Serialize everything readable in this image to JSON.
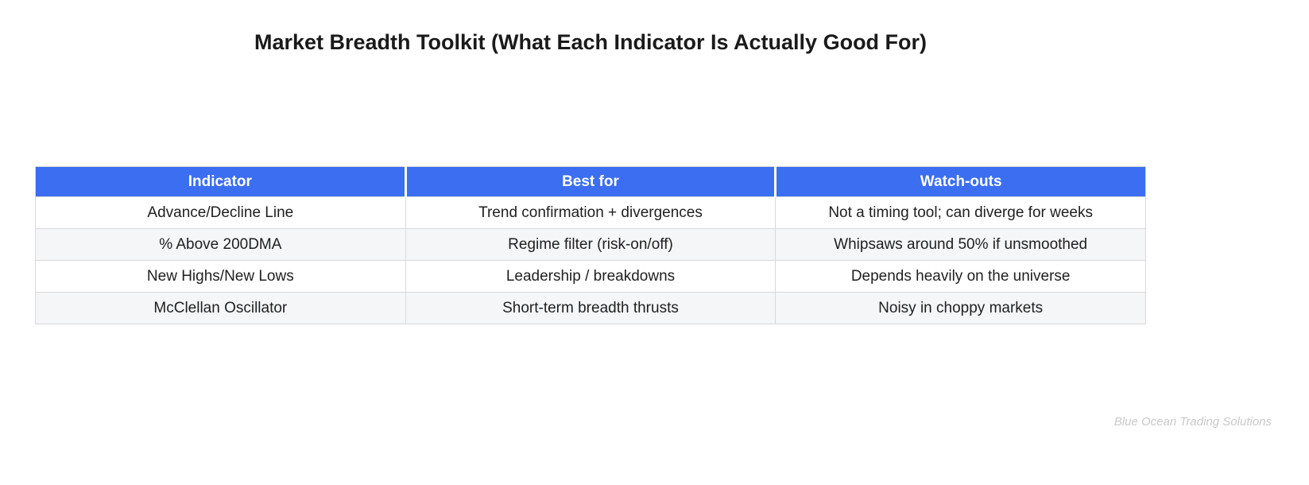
{
  "title": "Market Breadth Toolkit (What Each Indicator Is Actually Good For)",
  "watermark": "Blue Ocean Trading Solutions",
  "colors": {
    "header_bg": "#3b6ef0",
    "header_text": "#ffffff",
    "row_alt_bg": "#f5f6f8",
    "border": "#d9d9dc",
    "text": "#1f1f1f",
    "watermark": "#c9c9c9"
  },
  "table": {
    "columns": [
      "Indicator",
      "Best for",
      "Watch-outs"
    ],
    "rows": [
      [
        "Advance/Decline Line",
        "Trend confirmation + divergences",
        "Not a timing tool; can diverge for weeks"
      ],
      [
        "% Above 200DMA",
        "Regime filter (risk-on/off)",
        "Whipsaws around 50% if unsmoothed"
      ],
      [
        "New Highs/New Lows",
        "Leadership / breakdowns",
        "Depends heavily on the universe"
      ],
      [
        "McClellan Oscillator",
        "Short-term breadth thrusts",
        "Noisy in choppy markets"
      ]
    ]
  },
  "chart_data": {
    "type": "table",
    "title": "Market Breadth Toolkit (What Each Indicator Is Actually Good For)",
    "columns": [
      "Indicator",
      "Best for",
      "Watch-outs"
    ],
    "rows": [
      [
        "Advance/Decline Line",
        "Trend confirmation + divergences",
        "Not a timing tool; can diverge for weeks"
      ],
      [
        "% Above 200DMA",
        "Regime filter (risk-on/off)",
        "Whipsaws around 50% if unsmoothed"
      ],
      [
        "New Highs/New Lows",
        "Leadership / breakdowns",
        "Depends heavily on the universe"
      ],
      [
        "McClellan Oscillator",
        "Short-term breadth thrusts",
        "Noisy in choppy markets"
      ]
    ],
    "annotation": "Blue Ocean Trading Solutions",
    "layout": {
      "header_fill": "#3b6ef0",
      "row_striping": true,
      "cell_align": "center"
    }
  }
}
